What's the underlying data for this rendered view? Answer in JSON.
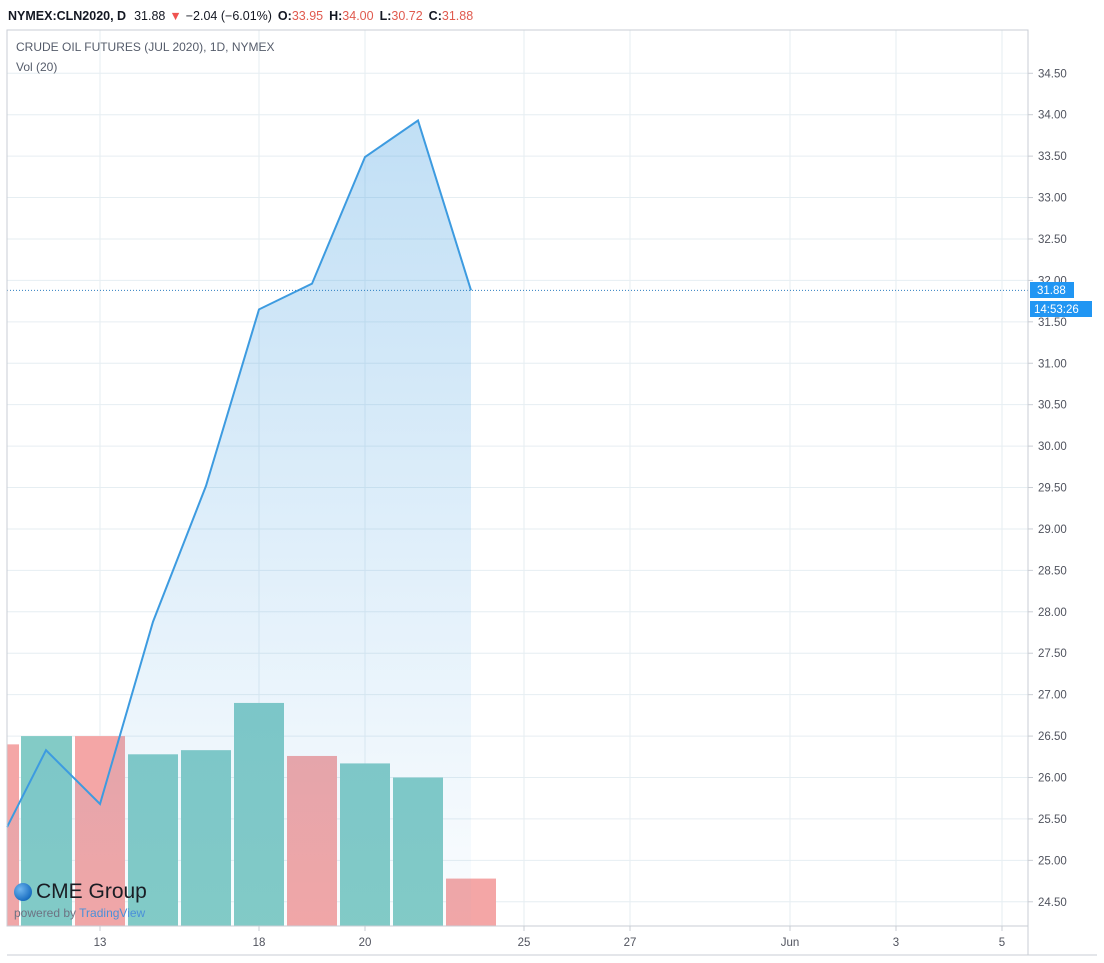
{
  "header": {
    "symbol": "NYMEX:CLN2020, D",
    "last": "31.88",
    "down_arrow": "▼",
    "change": "−2.04 (−6.01%)",
    "o_label": "O:",
    "o_value": "33.95",
    "h_label": "H:",
    "h_value": "34.00",
    "l_label": "L:",
    "l_value": "30.72",
    "c_label": "C:",
    "c_value": "31.88"
  },
  "legend": {
    "title": "CRUDE OIL FUTURES (JUL 2020), 1D, NYMEX",
    "volume": "Vol (20)"
  },
  "price_label": {
    "value": "31.88",
    "countdown": "14:53:26"
  },
  "branding": {
    "brand": "CME Group",
    "powered_by": "powered by",
    "provider": "TradingView"
  },
  "colors": {
    "line": "#3d9be0",
    "vol_up": "#83cbc6",
    "vol_down": "#f4a6a6",
    "accent": "#2196f3",
    "grid": "#e6eef2"
  },
  "chart_data": {
    "type": "area",
    "y_ticks": [
      "24.50",
      "25.00",
      "25.50",
      "26.00",
      "26.50",
      "27.00",
      "27.50",
      "28.00",
      "28.50",
      "29.00",
      "29.50",
      "30.00",
      "30.50",
      "31.00",
      "31.50",
      "32.00",
      "32.50",
      "33.00",
      "33.50",
      "34.00",
      "34.50"
    ],
    "ylim": [
      24.3,
      34.75
    ],
    "x_ticks": [
      {
        "label": "13",
        "day": 13
      },
      {
        "label": "18",
        "day": 18
      },
      {
        "label": "20",
        "day": 20
      },
      {
        "label": "25",
        "day": 25
      },
      {
        "label": "27",
        "day": 27
      },
      {
        "label": "Jun",
        "day": 32
      },
      {
        "label": "3",
        "day": 34
      },
      {
        "label": "5",
        "day": 36
      }
    ],
    "close": [
      {
        "day": 11,
        "value": 25.4
      },
      {
        "day": 12,
        "value": 26.33
      },
      {
        "day": 13,
        "value": 25.68
      },
      {
        "day": 14,
        "value": 27.88
      },
      {
        "day": 15,
        "value": 29.52
      },
      {
        "day": 18,
        "value": 31.65
      },
      {
        "day": 19,
        "value": 31.96
      },
      {
        "day": 20,
        "value": 33.49
      },
      {
        "day": 21,
        "value": 33.93
      },
      {
        "day": 22,
        "value": 31.88
      }
    ],
    "volume_bars": [
      {
        "day": 11,
        "direction": "down",
        "level": 26.4
      },
      {
        "day": 12,
        "direction": "up",
        "level": 26.5
      },
      {
        "day": 13,
        "direction": "down",
        "level": 26.5
      },
      {
        "day": 14,
        "direction": "up",
        "level": 26.28
      },
      {
        "day": 15,
        "direction": "up",
        "level": 26.33
      },
      {
        "day": 18,
        "direction": "up",
        "level": 26.9
      },
      {
        "day": 19,
        "direction": "down",
        "level": 26.26
      },
      {
        "day": 20,
        "direction": "up",
        "level": 26.17
      },
      {
        "day": 21,
        "direction": "up",
        "level": 26.0
      },
      {
        "day": 22,
        "direction": "down",
        "level": 24.78
      }
    ],
    "last_price": 31.88
  }
}
